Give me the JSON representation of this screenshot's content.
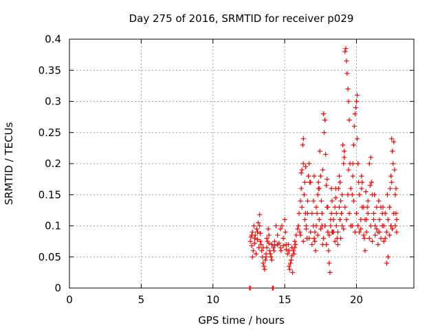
{
  "chart_data": {
    "type": "scatter",
    "title": "Day 275 of 2016, SRMTID for receiver p029",
    "xlabel": "GPS time / hours",
    "ylabel": "SRMTID / TECUs",
    "xlim": [
      0,
      24
    ],
    "ylim": [
      0,
      0.4
    ],
    "xticks": [
      0,
      5,
      10,
      15,
      20
    ],
    "xtick_labels": [
      "0",
      "5",
      "10",
      "15",
      "20"
    ],
    "yticks": [
      0,
      0.05,
      0.1,
      0.15,
      0.2,
      0.25,
      0.3,
      0.35,
      0.4
    ],
    "ytick_labels": [
      "0",
      "0.05",
      "0.1",
      "0.15",
      "0.2",
      "0.25",
      "0.3",
      "0.35",
      "0.4"
    ],
    "grid": true,
    "marker": "+",
    "marker_color": "#ff0000",
    "series": [
      {
        "name": "SRMTID",
        "points": [
          [
            12.55,
            0.0
          ],
          [
            12.6,
            0.0
          ],
          [
            14.15,
            0.0
          ],
          [
            14.2,
            0.0
          ],
          [
            12.6,
            0.075
          ],
          [
            12.65,
            0.082
          ],
          [
            12.7,
            0.068
          ],
          [
            12.75,
            0.09
          ],
          [
            12.8,
            0.06
          ],
          [
            12.85,
            0.1
          ],
          [
            12.9,
            0.072
          ],
          [
            12.95,
            0.085
          ],
          [
            13.0,
            0.055
          ],
          [
            13.05,
            0.095
          ],
          [
            13.1,
            0.078
          ],
          [
            13.15,
            0.105
          ],
          [
            13.2,
            0.065
          ],
          [
            13.25,
            0.118
          ],
          [
            13.3,
            0.088
          ],
          [
            13.35,
            0.07
          ],
          [
            13.4,
            0.06
          ],
          [
            13.45,
            0.05
          ],
          [
            13.5,
            0.04
          ],
          [
            13.55,
            0.035
          ],
          [
            13.6,
            0.03
          ],
          [
            13.65,
            0.045
          ],
          [
            13.7,
            0.05
          ],
          [
            13.75,
            0.065
          ],
          [
            13.8,
            0.075
          ],
          [
            13.85,
            0.095
          ],
          [
            13.9,
            0.085
          ],
          [
            13.95,
            0.06
          ],
          [
            14.0,
            0.055
          ],
          [
            14.05,
            0.05
          ],
          [
            14.1,
            0.045
          ],
          [
            14.2,
            0.065
          ],
          [
            14.3,
            0.075
          ],
          [
            14.4,
            0.1
          ],
          [
            14.5,
            0.085
          ],
          [
            14.6,
            0.072
          ],
          [
            14.7,
            0.095
          ],
          [
            14.8,
            0.1
          ],
          [
            14.9,
            0.08
          ],
          [
            15.0,
            0.11
          ],
          [
            15.05,
            0.09
          ],
          [
            15.1,
            0.062
          ],
          [
            15.2,
            0.055
          ],
          [
            15.3,
            0.035
          ],
          [
            15.35,
            0.03
          ],
          [
            15.4,
            0.04
          ],
          [
            15.45,
            0.045
          ],
          [
            15.5,
            0.052
          ],
          [
            15.55,
            0.025
          ],
          [
            15.6,
            0.06
          ],
          [
            15.7,
            0.065
          ],
          [
            15.75,
            0.07
          ],
          [
            15.8,
            0.085
          ],
          [
            15.9,
            0.095
          ],
          [
            15.95,
            0.1
          ],
          [
            12.7,
            0.085
          ],
          [
            12.9,
            0.08
          ],
          [
            13.1,
            0.09
          ],
          [
            13.3,
            0.075
          ],
          [
            13.5,
            0.065
          ],
          [
            13.7,
            0.055
          ],
          [
            13.9,
            0.072
          ],
          [
            14.1,
            0.07
          ],
          [
            14.3,
            0.068
          ],
          [
            14.5,
            0.07
          ],
          [
            14.7,
            0.065
          ],
          [
            14.9,
            0.068
          ],
          [
            15.1,
            0.07
          ],
          [
            15.3,
            0.06
          ],
          [
            15.5,
            0.065
          ],
          [
            15.7,
            0.075
          ],
          [
            12.75,
            0.05
          ],
          [
            13.25,
            0.1
          ],
          [
            13.75,
            0.08
          ],
          [
            14.25,
            0.06
          ],
          [
            14.75,
            0.06
          ],
          [
            15.25,
            0.07
          ],
          [
            15.65,
            0.055
          ],
          [
            16.0,
            0.12
          ],
          [
            16.05,
            0.09
          ],
          [
            16.1,
            0.14
          ],
          [
            16.15,
            0.16
          ],
          [
            16.2,
            0.19
          ],
          [
            16.25,
            0.23
          ],
          [
            16.3,
            0.24
          ],
          [
            16.3,
            0.2
          ],
          [
            16.35,
            0.15
          ],
          [
            16.4,
            0.17
          ],
          [
            16.45,
            0.12
          ],
          [
            16.5,
            0.1
          ],
          [
            16.55,
            0.08
          ],
          [
            16.6,
            0.14
          ],
          [
            16.65,
            0.18
          ],
          [
            16.7,
            0.2
          ],
          [
            16.8,
            0.17
          ],
          [
            16.9,
            0.12
          ],
          [
            17.0,
            0.1
          ],
          [
            17.05,
            0.08
          ],
          [
            17.1,
            0.075
          ],
          [
            17.15,
            0.06
          ],
          [
            17.2,
            0.1
          ],
          [
            17.25,
            0.12
          ],
          [
            17.3,
            0.15
          ],
          [
            17.35,
            0.17
          ],
          [
            17.4,
            0.16
          ],
          [
            17.45,
            0.22
          ],
          [
            17.5,
            0.18
          ],
          [
            17.55,
            0.14
          ],
          [
            17.6,
            0.1
          ],
          [
            17.65,
            0.07
          ],
          [
            17.7,
            0.28
          ],
          [
            17.75,
            0.25
          ],
          [
            17.8,
            0.27
          ],
          [
            17.85,
            0.215
          ],
          [
            17.9,
            0.165
          ],
          [
            17.95,
            0.13
          ],
          [
            18.0,
            0.09
          ],
          [
            18.05,
            0.06
          ],
          [
            18.1,
            0.04
          ],
          [
            18.15,
            0.025
          ],
          [
            18.2,
            0.1
          ],
          [
            18.25,
            0.12
          ],
          [
            18.3,
            0.14
          ],
          [
            18.35,
            0.09
          ],
          [
            18.4,
            0.11
          ],
          [
            18.5,
            0.13
          ],
          [
            18.55,
            0.16
          ],
          [
            18.6,
            0.1
          ],
          [
            18.65,
            0.08
          ],
          [
            18.7,
            0.07
          ],
          [
            18.75,
            0.16
          ],
          [
            18.8,
            0.18
          ],
          [
            18.85,
            0.11
          ],
          [
            18.9,
            0.14
          ],
          [
            18.95,
            0.12
          ],
          [
            19.0,
            0.15
          ],
          [
            19.05,
            0.23
          ],
          [
            19.1,
            0.2
          ],
          [
            19.15,
            0.22
          ],
          [
            19.2,
            0.38
          ],
          [
            19.25,
            0.385
          ],
          [
            19.3,
            0.365
          ],
          [
            19.35,
            0.345
          ],
          [
            19.4,
            0.32
          ],
          [
            19.45,
            0.3
          ],
          [
            19.5,
            0.27
          ],
          [
            19.55,
            0.2
          ],
          [
            19.6,
            0.1
          ],
          [
            19.7,
            0.15
          ],
          [
            19.75,
            0.18
          ],
          [
            19.8,
            0.23
          ],
          [
            19.85,
            0.26
          ],
          [
            19.9,
            0.28
          ],
          [
            19.95,
            0.29
          ],
          [
            20.0,
            0.3
          ],
          [
            20.05,
            0.31
          ],
          [
            20.1,
            0.2
          ],
          [
            20.15,
            0.17
          ],
          [
            20.2,
            0.09
          ],
          [
            20.3,
            0.11
          ],
          [
            20.35,
            0.16
          ],
          [
            20.4,
            0.17
          ],
          [
            20.5,
            0.13
          ],
          [
            20.55,
            0.08
          ],
          [
            20.6,
            0.06
          ],
          [
            20.7,
            0.11
          ],
          [
            20.75,
            0.13
          ],
          [
            20.8,
            0.14
          ],
          [
            20.9,
            0.2
          ],
          [
            21.0,
            0.21
          ],
          [
            21.05,
            0.17
          ],
          [
            21.1,
            0.15
          ],
          [
            21.2,
            0.12
          ],
          [
            21.3,
            0.1
          ],
          [
            21.4,
            0.095
          ],
          [
            21.5,
            0.09
          ],
          [
            21.6,
            0.11
          ],
          [
            21.7,
            0.13
          ],
          [
            21.8,
            0.12
          ],
          [
            21.9,
            0.1
          ],
          [
            22.0,
            0.08
          ],
          [
            22.1,
            0.04
          ],
          [
            22.2,
            0.05
          ],
          [
            22.3,
            0.13
          ],
          [
            22.35,
            0.16
          ],
          [
            22.4,
            0.18
          ],
          [
            22.45,
            0.24
          ],
          [
            22.5,
            0.22
          ],
          [
            22.55,
            0.2
          ],
          [
            22.6,
            0.235
          ],
          [
            22.65,
            0.19
          ],
          [
            22.7,
            0.15
          ],
          [
            22.75,
            0.12
          ],
          [
            22.8,
            0.09
          ],
          [
            16.2,
            0.13
          ],
          [
            16.4,
            0.11
          ],
          [
            16.6,
            0.12
          ],
          [
            16.8,
            0.09
          ],
          [
            17.0,
            0.14
          ],
          [
            17.2,
            0.13
          ],
          [
            17.4,
            0.11
          ],
          [
            17.6,
            0.12
          ],
          [
            17.8,
            0.1
          ],
          [
            18.0,
            0.13
          ],
          [
            18.2,
            0.11
          ],
          [
            18.4,
            0.09
          ],
          [
            18.6,
            0.12
          ],
          [
            18.8,
            0.13
          ],
          [
            19.0,
            0.1
          ],
          [
            19.2,
            0.13
          ],
          [
            19.4,
            0.15
          ],
          [
            19.6,
            0.16
          ],
          [
            19.8,
            0.14
          ],
          [
            20.0,
            0.12
          ],
          [
            20.2,
            0.15
          ],
          [
            20.4,
            0.13
          ],
          [
            20.6,
            0.11
          ],
          [
            20.8,
            0.12
          ],
          [
            21.0,
            0.1
          ],
          [
            21.2,
            0.11
          ],
          [
            21.4,
            0.13
          ],
          [
            21.6,
            0.09
          ],
          [
            21.8,
            0.1
          ],
          [
            22.0,
            0.12
          ],
          [
            22.2,
            0.11
          ],
          [
            22.4,
            0.1
          ],
          [
            22.6,
            0.12
          ],
          [
            22.8,
            0.11
          ],
          [
            16.1,
            0.085
          ],
          [
            16.3,
            0.075
          ],
          [
            16.5,
            0.095
          ],
          [
            16.7,
            0.08
          ],
          [
            16.9,
            0.07
          ],
          [
            17.1,
            0.09
          ],
          [
            17.3,
            0.085
          ],
          [
            17.5,
            0.095
          ],
          [
            17.7,
            0.08
          ],
          [
            17.9,
            0.07
          ],
          [
            18.1,
            0.085
          ],
          [
            18.3,
            0.09
          ],
          [
            18.5,
            0.075
          ],
          [
            18.7,
            0.09
          ],
          [
            18.9,
            0.08
          ],
          [
            19.1,
            0.095
          ],
          [
            19.3,
            0.11
          ],
          [
            19.5,
            0.12
          ],
          [
            19.7,
            0.1
          ],
          [
            19.9,
            0.09
          ],
          [
            20.1,
            0.1
          ],
          [
            20.3,
            0.095
          ],
          [
            20.5,
            0.085
          ],
          [
            20.7,
            0.09
          ],
          [
            20.9,
            0.08
          ],
          [
            21.1,
            0.075
          ],
          [
            21.3,
            0.085
          ],
          [
            21.5,
            0.07
          ],
          [
            21.7,
            0.08
          ],
          [
            21.9,
            0.075
          ],
          [
            22.1,
            0.09
          ],
          [
            22.3,
            0.085
          ],
          [
            22.5,
            0.095
          ],
          [
            22.7,
            0.1
          ],
          [
            16.15,
            0.185
          ],
          [
            16.45,
            0.195
          ],
          [
            16.75,
            0.17
          ],
          [
            17.05,
            0.18
          ],
          [
            17.35,
            0.16
          ],
          [
            17.65,
            0.19
          ],
          [
            17.95,
            0.175
          ],
          [
            18.25,
            0.16
          ],
          [
            18.55,
            0.145
          ],
          [
            18.85,
            0.17
          ],
          [
            19.15,
            0.21
          ],
          [
            19.45,
            0.19
          ],
          [
            19.75,
            0.2
          ],
          [
            20.05,
            0.24
          ],
          [
            20.35,
            0.18
          ],
          [
            20.65,
            0.155
          ],
          [
            20.95,
            0.165
          ],
          [
            21.25,
            0.15
          ],
          [
            21.55,
            0.14
          ],
          [
            21.85,
            0.13
          ],
          [
            22.15,
            0.15
          ],
          [
            22.45,
            0.17
          ],
          [
            22.75,
            0.16
          ]
        ]
      }
    ]
  }
}
